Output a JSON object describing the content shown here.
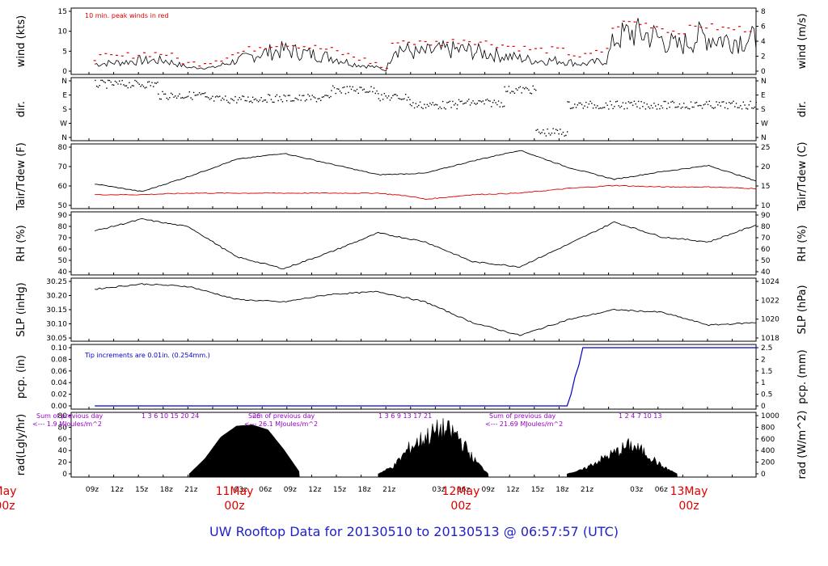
{
  "footer_title": "UW Rooftop Data for 20130510  to  20130513 @ 06:57:57  (UTC)",
  "colors": {
    "line": "#000000",
    "red": "#dd0000",
    "blue": "#0000cc",
    "purple": "#9900cc",
    "title": "#1f1fcc"
  },
  "time_axis": {
    "hour_labels": [
      "09z",
      "12z",
      "15z",
      "18z",
      "21z",
      "",
      "03z",
      "06z",
      "09z",
      "12z",
      "15z",
      "18z",
      "21z",
      "",
      "03z",
      "06z",
      "09z",
      "12z",
      "15z",
      "18z",
      "21z",
      "",
      "03z",
      "06z"
    ],
    "day_labels": [
      {
        "label": "11May",
        "sub": "00z",
        "at_hour": 24
      },
      {
        "label": "12May",
        "sub": "00z",
        "at_hour": 48
      },
      {
        "label": "13May",
        "sub": "00z",
        "at_hour": 72
      },
      {
        "label": "May",
        "sub": "00z",
        "at_hour": 0
      }
    ]
  },
  "chart_data": [
    {
      "type": "line",
      "panel": "wind",
      "ylabel_left": "wind (kts)",
      "ylabel_right": "wind (m/s)",
      "yticks_left": [
        "0",
        "5",
        "10",
        "15"
      ],
      "yticks_right": [
        "0",
        "2",
        "4",
        "6",
        "8"
      ],
      "ylim": [
        0,
        17
      ],
      "annotation": "10 min. peak winds in red",
      "series": [
        {
          "x_hours": [
            0,
            3,
            6,
            9,
            12,
            15,
            18,
            21,
            24,
            27,
            30,
            33,
            36,
            37,
            38,
            41,
            44,
            47,
            50,
            53,
            56,
            59,
            62,
            65,
            66,
            68,
            71,
            74,
            77,
            80
          ],
          "values": [
            2,
            2.5,
            3,
            3,
            1,
            1,
            3,
            5,
            6,
            5,
            4,
            2,
            1,
            0,
            7,
            5,
            6,
            6,
            5,
            4,
            3,
            3,
            2,
            3,
            9,
            11,
            10,
            7,
            10,
            9
          ]
        },
        {
          "name": "peak",
          "x_hours": [
            0,
            3,
            6,
            9,
            12,
            15,
            18,
            21,
            24,
            27,
            30,
            33,
            36,
            37,
            38,
            41,
            44,
            47,
            50,
            53,
            56,
            59,
            62,
            65,
            66,
            68,
            71,
            74,
            77,
            80
          ],
          "values": [
            4,
            4,
            5,
            5,
            2,
            3,
            5,
            7,
            8,
            7,
            6,
            4,
            2,
            0,
            9,
            8,
            8,
            9,
            8,
            7,
            6,
            6,
            4,
            6,
            13,
            14,
            13,
            11,
            13,
            12
          ]
        }
      ]
    },
    {
      "type": "scatter",
      "panel": "dir",
      "ylabel_left": "dir.",
      "ylabel_right": "dir.",
      "yticks_left": [
        "N",
        "W",
        "S",
        "E",
        "N"
      ],
      "yticks_right": [
        "N",
        "W",
        "S",
        "E",
        "N"
      ]
    },
    {
      "type": "line",
      "panel": "temp",
      "ylabel_left": "Tair/Tdew (F)",
      "ylabel_right": "Tair/Tdew (C)",
      "yticks_left": [
        "50",
        "60",
        "70",
        "80"
      ],
      "yticks_right": [
        "10",
        "15",
        "20",
        "25"
      ],
      "ylim": [
        43,
        81
      ],
      "series": [
        {
          "name": "Tair",
          "x_hours": [
            0,
            6,
            12,
            18,
            24,
            30,
            36,
            42,
            48,
            54,
            60,
            66,
            72,
            78,
            84
          ],
          "values": [
            57,
            52,
            62,
            73,
            77,
            70,
            63,
            64,
            72,
            79,
            68,
            60,
            65,
            69,
            59
          ]
        },
        {
          "name": "Tdew",
          "x_hours": [
            0,
            6,
            12,
            18,
            24,
            30,
            36,
            40,
            42,
            48,
            54,
            60,
            66,
            72,
            78,
            84
          ],
          "values": [
            50,
            50,
            51,
            51,
            51,
            51,
            51,
            49,
            47,
            50,
            51,
            54,
            56,
            55,
            55,
            54
          ]
        }
      ]
    },
    {
      "type": "line",
      "panel": "rh",
      "ylabel_left": "RH (%)",
      "ylabel_right": "RH (%)",
      "yticks_left": [
        "40",
        "50",
        "60",
        "70",
        "80",
        "90"
      ],
      "yticks_right": [
        "40",
        "50",
        "60",
        "70",
        "80",
        "90"
      ],
      "ylim": [
        35,
        92
      ],
      "series": [
        {
          "x_hours": [
            0,
            6,
            12,
            18,
            24,
            30,
            36,
            42,
            48,
            54,
            60,
            66,
            72,
            78,
            84
          ],
          "values": [
            76,
            88,
            80,
            50,
            38,
            55,
            74,
            65,
            45,
            40,
            62,
            85,
            70,
            65,
            82
          ]
        }
      ]
    },
    {
      "type": "line",
      "panel": "slp",
      "ylabel_left": "SLP (inHg)",
      "ylabel_right": "SLP (hPa)",
      "yticks_left": [
        "30.05",
        "30.10",
        "30.15",
        "30.20",
        "30.25"
      ],
      "yticks_right": [
        "1018",
        "1020",
        "1022",
        "1024"
      ],
      "ylim": [
        30.05,
        30.27
      ],
      "series": [
        {
          "x_hours": [
            0,
            6,
            12,
            18,
            24,
            30,
            36,
            42,
            48,
            54,
            60,
            66,
            72,
            78,
            84
          ],
          "values": [
            30.24,
            30.26,
            30.25,
            30.2,
            30.19,
            30.22,
            30.23,
            30.19,
            30.11,
            30.06,
            30.12,
            30.16,
            30.15,
            30.1,
            30.11
          ]
        }
      ]
    },
    {
      "type": "line",
      "panel": "pcp",
      "ylabel_left": "pcp. (in)",
      "ylabel_right": "pcp. (mm)",
      "yticks_left": [
        "0.00",
        "0.02",
        "0.04",
        "0.06",
        "0.08",
        "0.10"
      ],
      "yticks_right": [
        "0",
        "0.5",
        "1",
        "1.5",
        "2",
        "2.5"
      ],
      "ylim": [
        0,
        0.1
      ],
      "annotation": "Tip increments are 0.01in. (0.254mm.)",
      "series": [
        {
          "x_hours": [
            0,
            60,
            60.5,
            61,
            61.5,
            62,
            84
          ],
          "values": [
            0,
            0,
            0.02,
            0.05,
            0.07,
            0.1,
            0.1
          ]
        }
      ]
    },
    {
      "type": "area",
      "panel": "rad",
      "ylabel_left": "rad(Lgly/hr)",
      "ylabel_right": "rad (W/m^2)",
      "yticks_left": [
        "0",
        "20",
        "40",
        "60",
        "80",
        "80"
      ],
      "yticks_right": [
        "0",
        "200",
        "400",
        "600",
        "800",
        "1000"
      ],
      "ylim": [
        0,
        95
      ],
      "day_sums": [
        {
          "label": "Sum of previous day",
          "value": "<--- 1.9 MJoules/m^2",
          "hour_ticks": "1   3   6   10   15   20     24"
        },
        {
          "label": "Sum of previous day",
          "value": "<--- 26.1 MJoules/m^2",
          "hour_ticks": "1   3   6   9   13   17     21"
        },
        {
          "label": "Sum of previous day",
          "value": "<--- 21.69 MJoules/m^2",
          "hour_ticks": "1   2    4   7   10      13"
        }
      ],
      "extra_tick": "26",
      "series": [
        {
          "x_hours": [
            12,
            14,
            16,
            18,
            20,
            22,
            24,
            26
          ],
          "values": [
            0,
            25,
            60,
            78,
            80,
            72,
            40,
            3
          ]
        },
        {
          "x_hours": [
            36,
            38,
            40,
            42,
            44,
            46,
            48,
            50
          ],
          "values": [
            0,
            15,
            50,
            70,
            85,
            75,
            30,
            0
          ]
        },
        {
          "x_hours": [
            60,
            62,
            64,
            66,
            68,
            70,
            72,
            74
          ],
          "values": [
            0,
            8,
            25,
            40,
            55,
            40,
            15,
            0
          ]
        }
      ]
    }
  ]
}
